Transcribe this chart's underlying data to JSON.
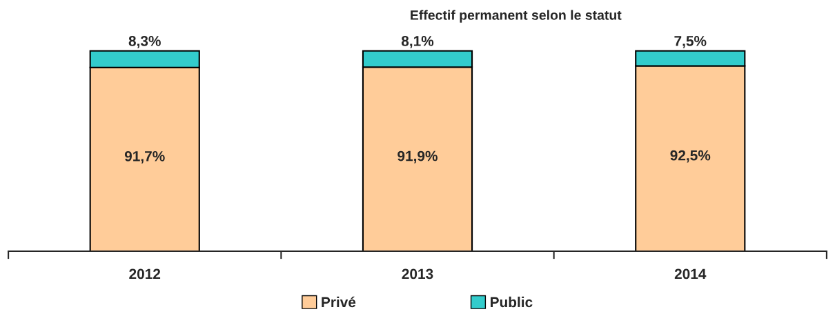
{
  "chart_data": {
    "type": "bar",
    "title": "Effectif permanent selon le statut",
    "categories": [
      "2012",
      "2013",
      "2014"
    ],
    "stacked": true,
    "legend": "bottom",
    "series": [
      {
        "name": "Privé",
        "color": "#ffcc99",
        "values": [
          91.7,
          91.9,
          92.5
        ],
        "value_labels": [
          "91,7%",
          "91,9%",
          "92,5%"
        ]
      },
      {
        "name": "Public",
        "color": "#33cccc",
        "values": [
          8.3,
          8.1,
          7.5
        ],
        "value_labels": [
          "8,3%",
          "8,1%",
          "7,5%"
        ]
      }
    ]
  }
}
